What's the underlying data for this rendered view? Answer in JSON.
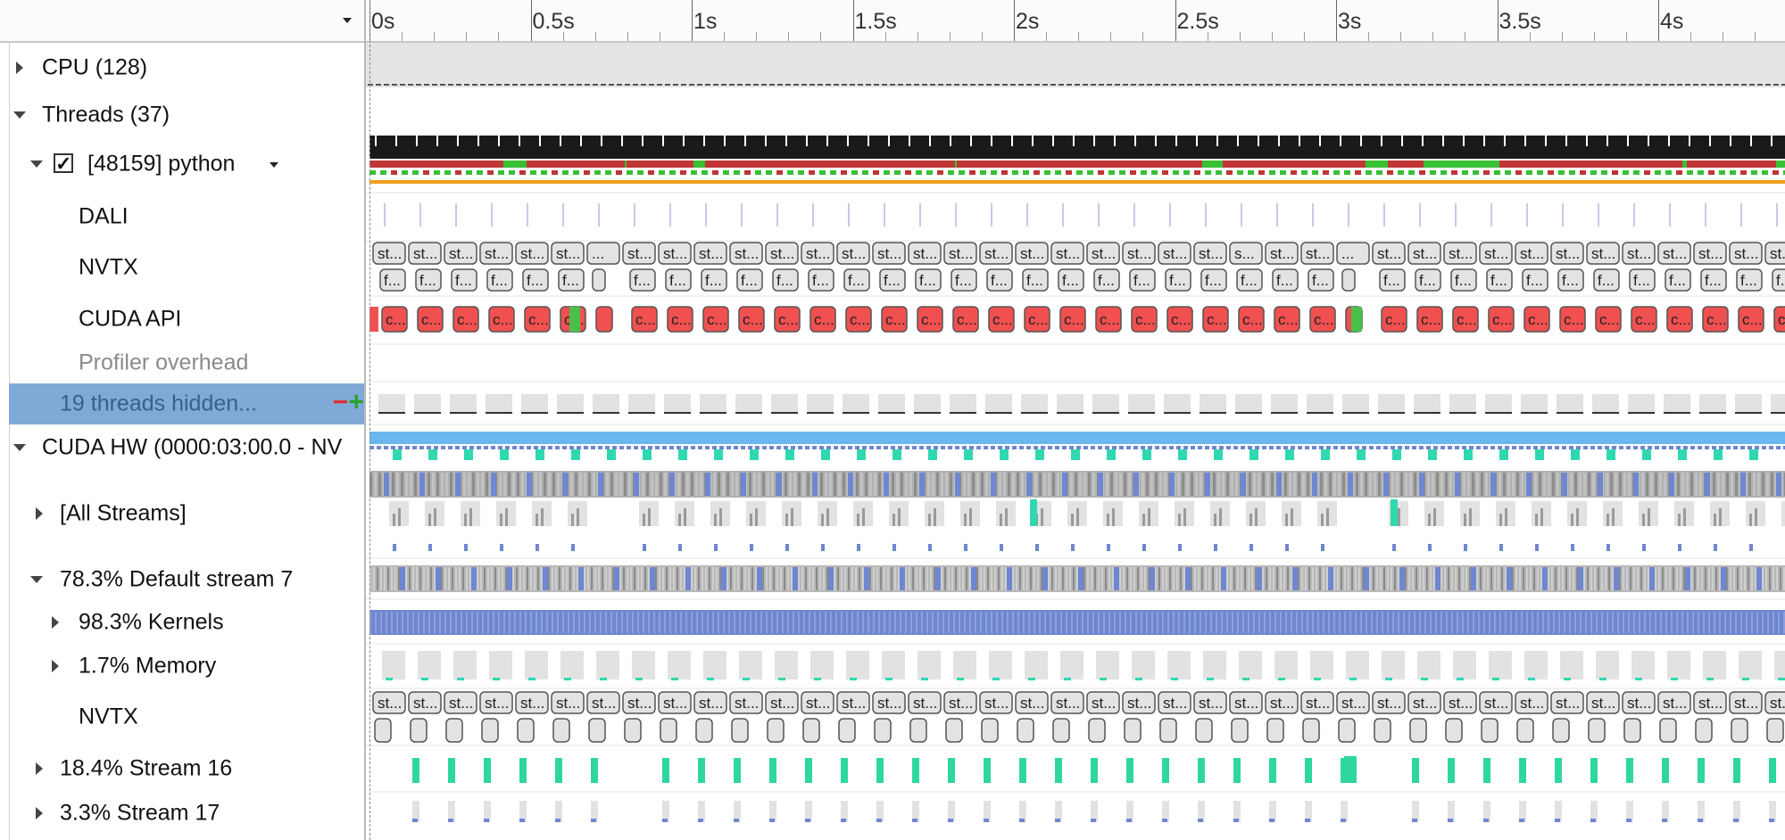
{
  "ruler": {
    "labels": [
      "0s",
      "0.5s",
      "1s",
      "1.5s",
      "2s",
      "2.5s",
      "3s",
      "3.5s",
      "4s"
    ]
  },
  "tree": {
    "cpu": "CPU (128)",
    "threads": "Threads (37)",
    "checkbox": "✓",
    "process": "[48159] python",
    "dali": "DALI",
    "nvtx": "NVTX",
    "cuda_api": "CUDA API",
    "profiler_overhead": "Profiler overhead",
    "hidden": "19 threads hidden...",
    "hidden_minus": "−",
    "hidden_plus": "+",
    "cuda_hw": "CUDA HW (0000:03:00.0 - NV",
    "all_streams": "[All Streams]",
    "default_stream": "78.3% Default stream 7",
    "kernels": "98.3% Kernels",
    "memory": "1.7% Memory",
    "nvtx2": "NVTX",
    "stream16": "18.4% Stream 16",
    "stream17": "3.3% Stream 17"
  },
  "block_labels": {
    "nvtx_top": "st...",
    "nvtx_top_alt": "s...",
    "nvtx_top_gap": "...",
    "nvtx_bottom": "f...",
    "cuda_api": "c...",
    "stream_nvtx": "st..."
  },
  "colors": {
    "cpu_band": "#e4e4e4",
    "thread_black": "#1a1a1a",
    "thread_red": "#c03535",
    "thread_green": "#38c035",
    "thread_orange": "#f0a020",
    "cuda_red": "#f05050",
    "cuda_green": "#4ac04a",
    "kernel_blue": "#6f86d1",
    "memory_teal": "#30d8b0",
    "hw_lightblue": "#6ab7f0",
    "gray_block": "#e2e2e2",
    "stream_green": "#2fd7a0"
  }
}
